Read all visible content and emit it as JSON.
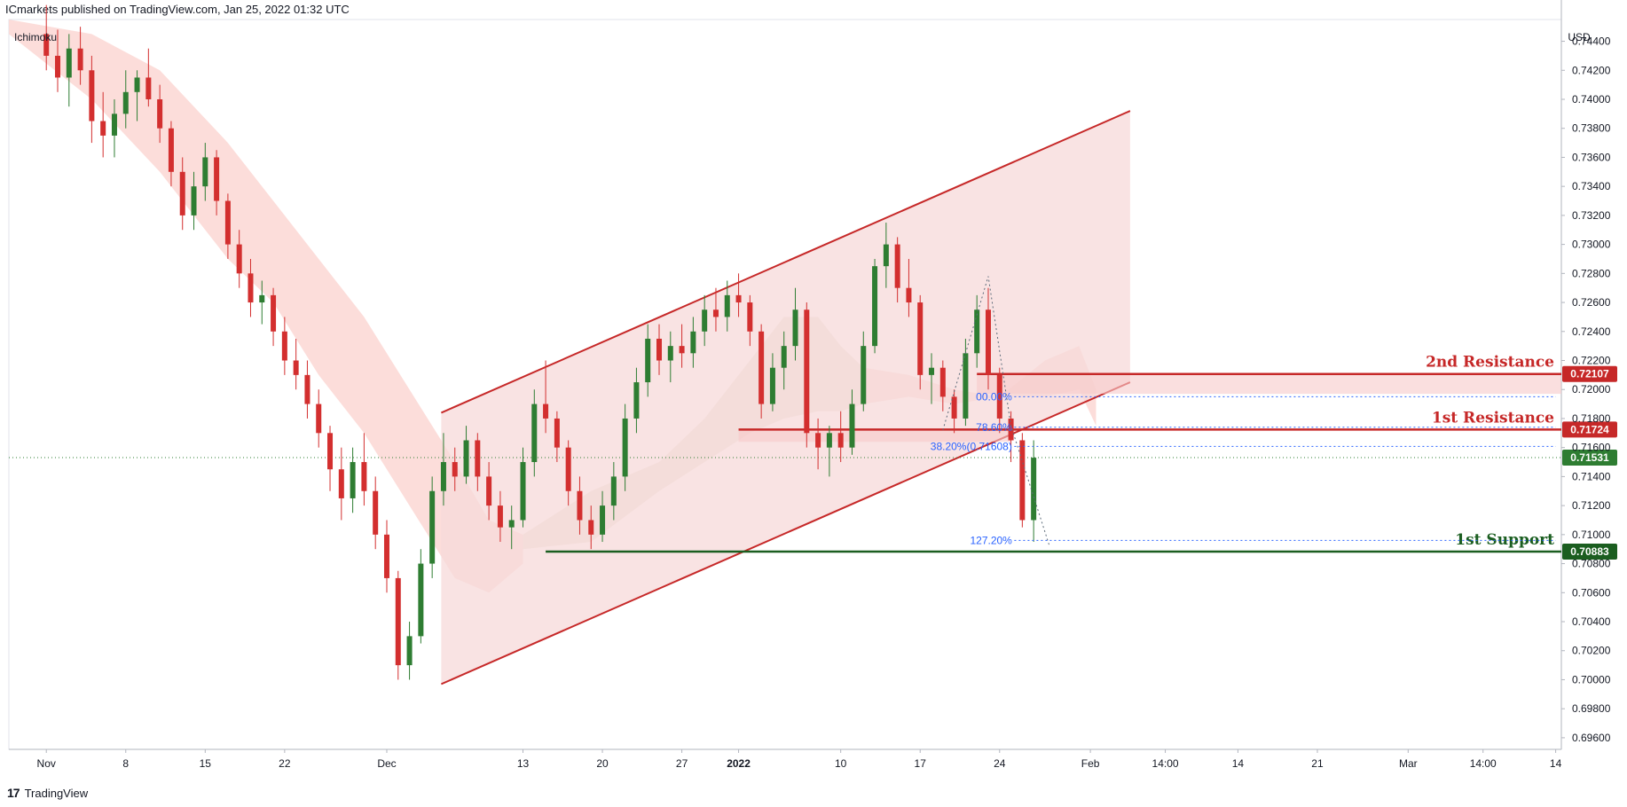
{
  "header": {
    "published": "ICmarkets published on TradingView.com, Jan 25, 2022 01:32 UTC"
  },
  "footer": {
    "brand": "TradingView"
  },
  "colors": {
    "up": "#2e7d32",
    "down": "#d32f2f",
    "channel": "#c62828",
    "channel_fill": "#f7d9d9",
    "cloud_bear": "#fbd7d4",
    "cloud_bull": "#e7e1d2",
    "resistance": "#c62828",
    "support": "#1b5e20",
    "fib": "#2962ff",
    "price": "#2e7d32"
  },
  "chart_data": {
    "type": "candlestick",
    "indicator": "Ichimoku",
    "currency": "USD",
    "y_axis": {
      "ticks": [
        "0.74400",
        "0.74200",
        "0.74000",
        "0.73800",
        "0.73600",
        "0.73400",
        "0.73200",
        "0.73000",
        "0.72800",
        "0.72600",
        "0.72400",
        "0.72200",
        "0.72000",
        "0.71800",
        "0.71600",
        "0.71400",
        "0.71200",
        "0.71000",
        "0.70800",
        "0.70600",
        "0.70400",
        "0.70200",
        "0.70000",
        "0.69800",
        "0.69600"
      ],
      "range": [
        0.6952,
        0.7455
      ]
    },
    "x_axis": {
      "ticks": [
        {
          "label": "Nov",
          "day": 0
        },
        {
          "label": "8",
          "day": 7
        },
        {
          "label": "15",
          "day": 14
        },
        {
          "label": "22",
          "day": 21
        },
        {
          "label": "Dec",
          "day": 30
        },
        {
          "label": "13",
          "day": 42
        },
        {
          "label": "20",
          "day": 49
        },
        {
          "label": "27",
          "day": 56
        },
        {
          "label": "2022",
          "day": 61,
          "bold": true
        },
        {
          "label": "10",
          "day": 70
        },
        {
          "label": "17",
          "day": 77
        },
        {
          "label": "24",
          "day": 84
        },
        {
          "label": "Feb",
          "day": 92
        },
        {
          "label": "14:00",
          "day": 98.6
        },
        {
          "label": "14",
          "day": 105
        },
        {
          "label": "21",
          "day": 112
        },
        {
          "label": "Mar",
          "day": 120
        },
        {
          "label": "14:00",
          "day": 126.6
        },
        {
          "label": "14",
          "day": 133
        }
      ],
      "range_days": [
        -3.3,
        133.5
      ]
    },
    "levels": [
      {
        "name": "2nd Resistance",
        "value": 0.72107,
        "badge": "0.72107",
        "kind": "resistance"
      },
      {
        "name": "1st Resistance",
        "value": 0.71724,
        "badge": "0.71724",
        "kind": "resistance"
      },
      {
        "name": "1st Support",
        "value": 0.70883,
        "badge": "0.70883",
        "kind": "support"
      }
    ],
    "current_price": {
      "value": 0.71531,
      "badge": "0.71531"
    },
    "fib_levels": [
      {
        "label": "00.00%",
        "value": 0.7195
      },
      {
        "label": "78.60%",
        "value": 0.7174
      },
      {
        "label": "38.20%(0.71608)",
        "value": 0.71608
      },
      {
        "label": "127.20%",
        "value": 0.7096
      }
    ],
    "channel": {
      "upper": [
        [
          34.8,
          0.7184
        ],
        [
          95.5,
          0.7392
        ]
      ],
      "lower": [
        [
          34.8,
          0.6997
        ],
        [
          95.5,
          0.7205
        ]
      ]
    },
    "candles": [
      [
        0,
        0.7445,
        0.7465,
        0.742,
        0.743
      ],
      [
        1,
        0.743,
        0.7448,
        0.7405,
        0.7415
      ],
      [
        2,
        0.7415,
        0.7445,
        0.7395,
        0.7435
      ],
      [
        3,
        0.7435,
        0.745,
        0.741,
        0.742
      ],
      [
        4,
        0.742,
        0.743,
        0.737,
        0.7385
      ],
      [
        5,
        0.7385,
        0.7405,
        0.736,
        0.7375
      ],
      [
        6,
        0.7375,
        0.74,
        0.736,
        0.739
      ],
      [
        7,
        0.739,
        0.742,
        0.738,
        0.7405
      ],
      [
        8,
        0.7405,
        0.742,
        0.7385,
        0.7415
      ],
      [
        9,
        0.7415,
        0.7435,
        0.7395,
        0.74
      ],
      [
        10,
        0.74,
        0.741,
        0.737,
        0.738
      ],
      [
        11,
        0.738,
        0.7385,
        0.734,
        0.735
      ],
      [
        12,
        0.735,
        0.736,
        0.731,
        0.732
      ],
      [
        13,
        0.732,
        0.735,
        0.731,
        0.734
      ],
      [
        14,
        0.734,
        0.737,
        0.733,
        0.736
      ],
      [
        15,
        0.736,
        0.7365,
        0.732,
        0.733
      ],
      [
        16,
        0.733,
        0.7335,
        0.729,
        0.73
      ],
      [
        17,
        0.73,
        0.731,
        0.727,
        0.728
      ],
      [
        18,
        0.728,
        0.729,
        0.725,
        0.726
      ],
      [
        19,
        0.726,
        0.7275,
        0.7245,
        0.7265
      ],
      [
        20,
        0.7265,
        0.727,
        0.723,
        0.724
      ],
      [
        21,
        0.724,
        0.725,
        0.721,
        0.722
      ],
      [
        22,
        0.722,
        0.7235,
        0.72,
        0.721
      ],
      [
        23,
        0.721,
        0.722,
        0.718,
        0.719
      ],
      [
        24,
        0.719,
        0.72,
        0.716,
        0.717
      ],
      [
        25,
        0.717,
        0.7175,
        0.713,
        0.7145
      ],
      [
        26,
        0.7145,
        0.716,
        0.711,
        0.7125
      ],
      [
        27,
        0.7125,
        0.716,
        0.7115,
        0.715
      ],
      [
        28,
        0.715,
        0.717,
        0.712,
        0.713
      ],
      [
        29,
        0.713,
        0.714,
        0.709,
        0.71
      ],
      [
        30,
        0.71,
        0.711,
        0.706,
        0.707
      ],
      [
        31,
        0.707,
        0.7075,
        0.7,
        0.701
      ],
      [
        32,
        0.701,
        0.704,
        0.7,
        0.703
      ],
      [
        33,
        0.703,
        0.709,
        0.7025,
        0.708
      ],
      [
        34,
        0.708,
        0.714,
        0.707,
        0.713
      ],
      [
        35,
        0.713,
        0.717,
        0.712,
        0.715
      ],
      [
        36,
        0.715,
        0.716,
        0.713,
        0.714
      ],
      [
        37,
        0.714,
        0.7175,
        0.7135,
        0.7165
      ],
      [
        38,
        0.7165,
        0.717,
        0.713,
        0.714
      ],
      [
        39,
        0.714,
        0.715,
        0.711,
        0.712
      ],
      [
        40,
        0.712,
        0.713,
        0.7095,
        0.7105
      ],
      [
        41,
        0.7105,
        0.712,
        0.709,
        0.711
      ],
      [
        42,
        0.711,
        0.716,
        0.7105,
        0.715
      ],
      [
        43,
        0.715,
        0.72,
        0.714,
        0.719
      ],
      [
        44,
        0.719,
        0.722,
        0.717,
        0.718
      ],
      [
        45,
        0.718,
        0.7185,
        0.715,
        0.716
      ],
      [
        46,
        0.716,
        0.7165,
        0.712,
        0.713
      ],
      [
        47,
        0.713,
        0.714,
        0.71,
        0.711
      ],
      [
        48,
        0.711,
        0.712,
        0.709,
        0.71
      ],
      [
        49,
        0.71,
        0.713,
        0.7095,
        0.712
      ],
      [
        50,
        0.712,
        0.715,
        0.711,
        0.714
      ],
      [
        51,
        0.714,
        0.719,
        0.713,
        0.718
      ],
      [
        52,
        0.718,
        0.7215,
        0.717,
        0.7205
      ],
      [
        53,
        0.7205,
        0.7245,
        0.7195,
        0.7235
      ],
      [
        54,
        0.7235,
        0.7245,
        0.721,
        0.722
      ],
      [
        55,
        0.722,
        0.724,
        0.7205,
        0.723
      ],
      [
        56,
        0.723,
        0.7245,
        0.7215,
        0.7225
      ],
      [
        57,
        0.7225,
        0.725,
        0.7215,
        0.724
      ],
      [
        58,
        0.724,
        0.7265,
        0.723,
        0.7255
      ],
      [
        59,
        0.7255,
        0.727,
        0.724,
        0.725
      ],
      [
        60,
        0.725,
        0.7275,
        0.724,
        0.7265
      ],
      [
        61,
        0.7265,
        0.728,
        0.725,
        0.726
      ],
      [
        62,
        0.726,
        0.7265,
        0.723,
        0.724
      ],
      [
        63,
        0.724,
        0.7245,
        0.718,
        0.719
      ],
      [
        64,
        0.719,
        0.7225,
        0.7185,
        0.7215
      ],
      [
        65,
        0.7215,
        0.724,
        0.72,
        0.723
      ],
      [
        66,
        0.723,
        0.727,
        0.722,
        0.7255
      ],
      [
        67,
        0.7255,
        0.726,
        0.716,
        0.717
      ],
      [
        68,
        0.717,
        0.718,
        0.7145,
        0.716
      ],
      [
        69,
        0.716,
        0.7175,
        0.714,
        0.717
      ],
      [
        70,
        0.717,
        0.7185,
        0.715,
        0.716
      ],
      [
        71,
        0.716,
        0.72,
        0.7155,
        0.719
      ],
      [
        72,
        0.719,
        0.724,
        0.7185,
        0.723
      ],
      [
        73,
        0.723,
        0.729,
        0.7225,
        0.7285
      ],
      [
        74,
        0.7285,
        0.7315,
        0.727,
        0.73
      ],
      [
        75,
        0.73,
        0.7305,
        0.726,
        0.727
      ],
      [
        76,
        0.727,
        0.729,
        0.725,
        0.726
      ],
      [
        77,
        0.726,
        0.7265,
        0.72,
        0.721
      ],
      [
        78,
        0.721,
        0.7225,
        0.719,
        0.7215
      ],
      [
        79,
        0.7215,
        0.722,
        0.7185,
        0.7195
      ],
      [
        80,
        0.7195,
        0.72,
        0.717,
        0.718
      ],
      [
        81,
        0.718,
        0.7235,
        0.7175,
        0.7225
      ],
      [
        82,
        0.7225,
        0.7265,
        0.7215,
        0.7255
      ],
      [
        83,
        0.7255,
        0.727,
        0.72,
        0.721
      ],
      [
        84,
        0.721,
        0.7215,
        0.717,
        0.718
      ],
      [
        85,
        0.718,
        0.7185,
        0.715,
        0.7165
      ],
      [
        86,
        0.7165,
        0.717,
        0.7105,
        0.711
      ],
      [
        87,
        0.711,
        0.7165,
        0.7095,
        0.7153
      ]
    ],
    "cloud": {
      "bear": [
        [
          -3.3,
          0.7455,
          0.7445
        ],
        [
          4,
          0.7445,
          0.74
        ],
        [
          10,
          0.742,
          0.735
        ],
        [
          16,
          0.737,
          0.729
        ],
        [
          20,
          0.733,
          0.726
        ],
        [
          24,
          0.729,
          0.721
        ],
        [
          28,
          0.725,
          0.717
        ],
        [
          32,
          0.72,
          0.712
        ],
        [
          36,
          0.715,
          0.707
        ],
        [
          39,
          0.711,
          0.706
        ],
        [
          42,
          0.71,
          0.708
        ]
      ],
      "bull": [
        [
          42,
          0.71,
          0.709
        ],
        [
          48,
          0.713,
          0.7095
        ],
        [
          54,
          0.715,
          0.713
        ],
        [
          58,
          0.718,
          0.715
        ],
        [
          62,
          0.722,
          0.717
        ],
        [
          65,
          0.725,
          0.718
        ],
        [
          68,
          0.725,
          0.7185
        ],
        [
          70,
          0.723,
          0.7185
        ],
        [
          72,
          0.7215,
          0.719
        ]
      ],
      "bear2": [
        [
          72,
          0.7215,
          0.719
        ],
        [
          76,
          0.721,
          0.7195
        ],
        [
          80,
          0.72,
          0.719
        ],
        [
          84,
          0.7195,
          0.7195
        ]
      ],
      "bull2": [
        [
          84,
          0.7195,
          0.7195
        ],
        [
          88,
          0.722,
          0.7195
        ],
        [
          91,
          0.723,
          0.72
        ],
        [
          92.5,
          0.72,
          0.7175
        ]
      ],
      "lag": [
        [
          -3.3,
          0.745
        ],
        [
          3,
          0.742
        ],
        [
          10,
          0.736
        ],
        [
          18,
          0.73
        ],
        [
          24,
          0.725
        ],
        [
          30,
          0.718
        ],
        [
          36,
          0.712
        ],
        [
          42,
          0.709
        ]
      ]
    },
    "fib_path": [
      [
        79,
        0.7172
      ],
      [
        83,
        0.7278
      ],
      [
        85,
        0.7175
      ],
      [
        88.4,
        0.7092
      ]
    ]
  }
}
